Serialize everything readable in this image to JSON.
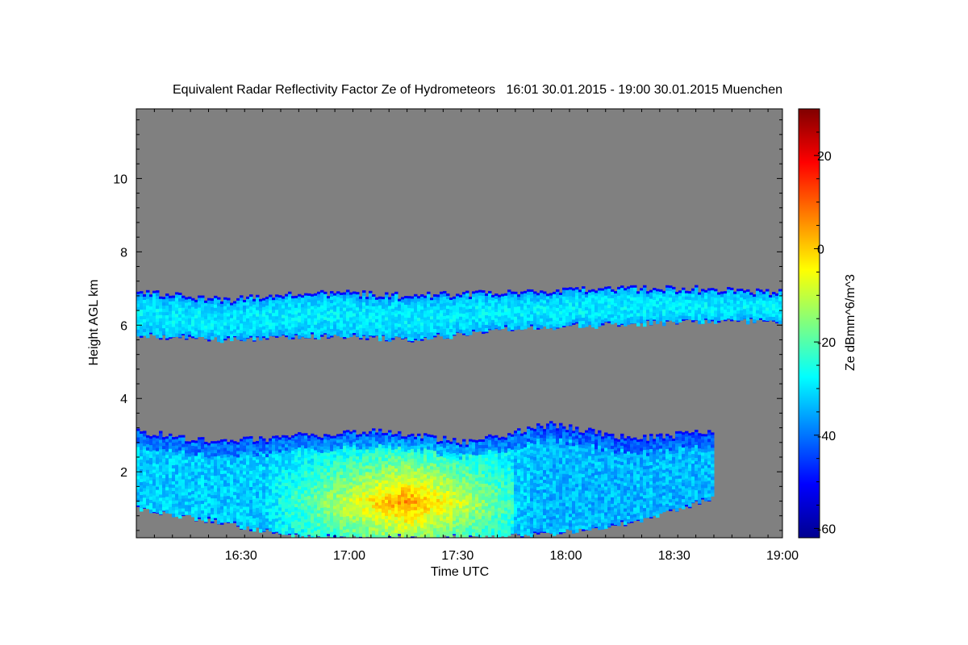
{
  "chart_data": {
    "type": "heatmap",
    "title": "Equivalent Radar Reflectivity Factor Ze of Hydrometeors   16:01 30.01.2015 - 19:00 30.01.2015 Muenchen",
    "xlabel": "Time UTC",
    "ylabel": "Height AGL km",
    "xlim": [
      "16:01",
      "19:00"
    ],
    "ylim": [
      0.2,
      11.9
    ],
    "x_ticks": [
      "16:30",
      "17:00",
      "17:30",
      "18:00",
      "18:30",
      "19:00"
    ],
    "y_ticks": [
      2,
      4,
      6,
      8,
      10
    ],
    "background_color": "#808080",
    "colorbar": {
      "label": "Ze dBmm^6/m^3",
      "range": [
        -62,
        30
      ],
      "ticks": [
        "20",
        "0",
        "-20",
        "-40",
        "-60"
      ],
      "colormap": "jet"
    },
    "layers": [
      {
        "name": "upper cloud layer",
        "time_range": [
          "16:01",
          "19:00"
        ],
        "base_km": [
          5.7,
          5.6,
          5.7,
          5.6,
          5.9,
          6.0,
          6.1,
          6.1
        ],
        "top_km": [
          6.9,
          6.7,
          6.9,
          6.8,
          6.9,
          7.0,
          7.0,
          6.9
        ],
        "ze_typical_dBZ": -35
      },
      {
        "name": "lower precipitation layer",
        "time_range": [
          "16:01",
          "18:41"
        ],
        "base_km": [
          1.0,
          0.6,
          0.2,
          0.2,
          0.2,
          0.3,
          0.6,
          1.3
        ],
        "top_km": [
          3.1,
          2.8,
          3.0,
          3.1,
          2.8,
          3.3,
          2.9,
          3.1
        ],
        "ze_max_dBZ": 10,
        "ze_max_time_range": [
          "16:55",
          "17:35"
        ],
        "ze_max_height_km": [
          0.5,
          2.0
        ]
      }
    ]
  }
}
